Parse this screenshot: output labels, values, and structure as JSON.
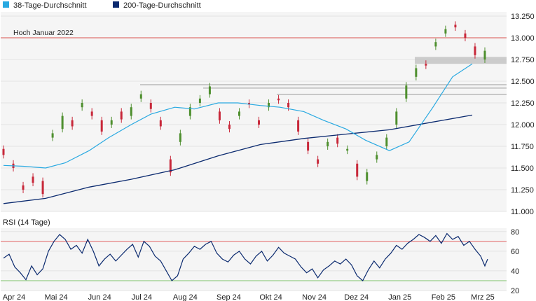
{
  "legend": [
    {
      "label": "38-Tage-Durchschnitt",
      "color": "#29a9e1"
    },
    {
      "label": "200-Tage-Durchschnitt",
      "color": "#0b2a6f"
    }
  ],
  "colors": {
    "up": "#4e8f2e",
    "down": "#c8283a",
    "ma38": "#29a9e1",
    "ma200": "#0b2a6f",
    "rsi": "#0b2a6f",
    "high_line": "#d9534f",
    "rsi_upper": "#e06060",
    "rsi_lower": "#7fc46a",
    "support_band": "#bdbdbd",
    "grid": "#e3e3e3",
    "panel": "#f5f5f5"
  },
  "chart_data": [
    {
      "type": "candlestick",
      "y_ticks": [
        "13.250",
        "13.000",
        "12.750",
        "12.500",
        "12.250",
        "12.000",
        "11.750",
        "11.500",
        "11.250",
        "11.000"
      ],
      "ylim": [
        11000,
        13250
      ],
      "x_ticks": [
        "Apr 24",
        "Mai 24",
        "Jun 24",
        "Jul 24",
        "Aug 24",
        "Sep 24",
        "Okt 24",
        "Nov 24",
        "Dez 24",
        "Jan 25",
        "Feb 25",
        "Mrz 25"
      ],
      "x_start": "2024-04-01",
      "x_end": "2025-03-14",
      "annotation": {
        "text": "Hoch Januar 2022",
        "value": 13000
      },
      "support_band": [
        12700,
        12780
      ],
      "resistance_levels": [
        12420,
        12460,
        12350
      ],
      "series": [
        {
          "name": "38-Tage-Durchschnitt",
          "points": [
            [
              "2024-04-01",
              11530
            ],
            [
              "2024-04-15",
              11520
            ],
            [
              "2024-05-01",
              11500
            ],
            [
              "2024-05-15",
              11560
            ],
            [
              "2024-06-01",
              11700
            ],
            [
              "2024-06-15",
              11850
            ],
            [
              "2024-07-01",
              12000
            ],
            [
              "2024-07-15",
              12120
            ],
            [
              "2024-08-01",
              12200
            ],
            [
              "2024-08-15",
              12180
            ],
            [
              "2024-09-01",
              12250
            ],
            [
              "2024-09-15",
              12250
            ],
            [
              "2024-10-01",
              12220
            ],
            [
              "2024-10-15",
              12200
            ],
            [
              "2024-11-01",
              12150
            ],
            [
              "2024-11-15",
              12050
            ],
            [
              "2024-12-01",
              11950
            ],
            [
              "2024-12-15",
              11820
            ],
            [
              "2025-01-01",
              11700
            ],
            [
              "2025-01-15",
              11800
            ],
            [
              "2025-02-01",
              12200
            ],
            [
              "2025-02-15",
              12550
            ],
            [
              "2025-03-01",
              12700
            ]
          ]
        },
        {
          "name": "200-Tage-Durchschnitt",
          "points": [
            [
              "2024-04-01",
              11090
            ],
            [
              "2024-05-01",
              11150
            ],
            [
              "2024-06-01",
              11280
            ],
            [
              "2024-07-01",
              11370
            ],
            [
              "2024-08-01",
              11480
            ],
            [
              "2024-09-01",
              11640
            ],
            [
              "2024-10-01",
              11770
            ],
            [
              "2024-11-01",
              11840
            ],
            [
              "2024-12-01",
              11890
            ],
            [
              "2025-01-01",
              11940
            ],
            [
              "2025-02-01",
              12030
            ],
            [
              "2025-03-01",
              12110
            ]
          ]
        }
      ],
      "candles": [
        [
          "2024-04-01",
          11720,
          11650
        ],
        [
          "2024-04-08",
          11550,
          11500
        ],
        [
          "2024-04-15",
          11300,
          11250
        ],
        [
          "2024-04-22",
          11400,
          11330
        ],
        [
          "2024-04-29",
          11350,
          11200
        ],
        [
          "2024-05-06",
          11850,
          11900
        ],
        [
          "2024-05-13",
          11950,
          12100
        ],
        [
          "2024-05-20",
          12050,
          11980
        ],
        [
          "2024-05-27",
          12200,
          12250
        ],
        [
          "2024-06-03",
          12150,
          12100
        ],
        [
          "2024-06-10",
          12050,
          11920
        ],
        [
          "2024-06-17",
          12000,
          12050
        ],
        [
          "2024-06-24",
          12150,
          12060
        ],
        [
          "2024-07-01",
          12100,
          12200
        ],
        [
          "2024-07-08",
          12300,
          12350
        ],
        [
          "2024-07-15",
          12250,
          12180
        ],
        [
          "2024-07-22",
          12050,
          11980
        ],
        [
          "2024-07-29",
          11600,
          11450
        ],
        [
          "2024-08-05",
          11800,
          11900
        ],
        [
          "2024-08-12",
          12100,
          12200
        ],
        [
          "2024-08-19",
          12250,
          12300
        ],
        [
          "2024-08-26",
          12350,
          12440
        ],
        [
          "2024-09-02",
          12150,
          12050
        ],
        [
          "2024-09-09",
          12000,
          11950
        ],
        [
          "2024-09-16",
          12100,
          12150
        ],
        [
          "2024-09-23",
          12250,
          12230
        ],
        [
          "2024-09-30",
          12050,
          12000
        ],
        [
          "2024-10-07",
          12200,
          12250
        ],
        [
          "2024-10-14",
          12300,
          12280
        ],
        [
          "2024-10-21",
          12250,
          12200
        ],
        [
          "2024-10-28",
          12050,
          11920
        ],
        [
          "2024-11-04",
          11800,
          11700
        ],
        [
          "2024-11-11",
          11600,
          11550
        ],
        [
          "2024-11-18",
          11750,
          11800
        ],
        [
          "2024-11-25",
          11850,
          11780
        ],
        [
          "2024-12-02",
          11700,
          11720
        ],
        [
          "2024-12-09",
          11550,
          11400
        ],
        [
          "2024-12-16",
          11350,
          11450
        ],
        [
          "2024-12-23",
          11600,
          11650
        ],
        [
          "2024-12-30",
          11750,
          11850
        ],
        [
          "2025-01-06",
          12000,
          12150
        ],
        [
          "2025-01-13",
          12300,
          12450
        ],
        [
          "2025-01-20",
          12550,
          12650
        ],
        [
          "2025-01-27",
          12700,
          12680
        ],
        [
          "2025-02-03",
          12900,
          12950
        ],
        [
          "2025-02-10",
          13050,
          13100
        ],
        [
          "2025-02-17",
          13150,
          13120
        ],
        [
          "2025-02-24",
          13050,
          13000
        ],
        [
          "2025-03-03",
          12900,
          12800
        ],
        [
          "2025-03-10",
          12750,
          12850
        ]
      ]
    },
    {
      "type": "line",
      "title": "RSI (14 Tage)",
      "y_ticks": [
        "80",
        "60",
        "40",
        "20"
      ],
      "ylim": [
        20,
        82
      ],
      "upper": 70,
      "lower": 30,
      "series": [
        {
          "name": "RSI (14 Tage)",
          "points": [
            [
              "2024-04-01",
              53
            ],
            [
              "2024-04-05",
              57
            ],
            [
              "2024-04-09",
              44
            ],
            [
              "2024-04-13",
              38
            ],
            [
              "2024-04-17",
              31
            ],
            [
              "2024-04-21",
              45
            ],
            [
              "2024-04-25",
              36
            ],
            [
              "2024-04-29",
              42
            ],
            [
              "2024-05-03",
              60
            ],
            [
              "2024-05-07",
              70
            ],
            [
              "2024-05-11",
              77
            ],
            [
              "2024-05-15",
              72
            ],
            [
              "2024-05-19",
              62
            ],
            [
              "2024-05-23",
              66
            ],
            [
              "2024-05-27",
              58
            ],
            [
              "2024-05-31",
              72
            ],
            [
              "2024-06-04",
              60
            ],
            [
              "2024-06-08",
              45
            ],
            [
              "2024-06-12",
              52
            ],
            [
              "2024-06-16",
              57
            ],
            [
              "2024-06-20",
              50
            ],
            [
              "2024-06-24",
              56
            ],
            [
              "2024-06-28",
              62
            ],
            [
              "2024-07-02",
              67
            ],
            [
              "2024-07-06",
              54
            ],
            [
              "2024-07-10",
              70
            ],
            [
              "2024-07-14",
              65
            ],
            [
              "2024-07-18",
              55
            ],
            [
              "2024-07-22",
              50
            ],
            [
              "2024-07-26",
              40
            ],
            [
              "2024-07-30",
              30
            ],
            [
              "2024-08-03",
              35
            ],
            [
              "2024-08-07",
              52
            ],
            [
              "2024-08-11",
              58
            ],
            [
              "2024-08-15",
              65
            ],
            [
              "2024-08-19",
              62
            ],
            [
              "2024-08-23",
              67
            ],
            [
              "2024-08-27",
              70
            ],
            [
              "2024-08-31",
              58
            ],
            [
              "2024-09-04",
              52
            ],
            [
              "2024-09-08",
              49
            ],
            [
              "2024-09-12",
              56
            ],
            [
              "2024-09-16",
              60
            ],
            [
              "2024-09-20",
              52
            ],
            [
              "2024-09-24",
              47
            ],
            [
              "2024-09-28",
              55
            ],
            [
              "2024-10-02",
              60
            ],
            [
              "2024-10-06",
              50
            ],
            [
              "2024-10-10",
              56
            ],
            [
              "2024-10-14",
              64
            ],
            [
              "2024-10-18",
              58
            ],
            [
              "2024-10-22",
              55
            ],
            [
              "2024-10-26",
              52
            ],
            [
              "2024-10-30",
              44
            ],
            [
              "2024-11-03",
              38
            ],
            [
              "2024-11-07",
              42
            ],
            [
              "2024-11-11",
              33
            ],
            [
              "2024-11-15",
              41
            ],
            [
              "2024-11-19",
              45
            ],
            [
              "2024-11-23",
              50
            ],
            [
              "2024-11-27",
              47
            ],
            [
              "2024-12-01",
              52
            ],
            [
              "2024-12-05",
              46
            ],
            [
              "2024-12-09",
              35
            ],
            [
              "2024-12-13",
              30
            ],
            [
              "2024-12-17",
              41
            ],
            [
              "2024-12-21",
              50
            ],
            [
              "2024-12-25",
              43
            ],
            [
              "2024-12-29",
              52
            ],
            [
              "2025-01-02",
              58
            ],
            [
              "2025-01-06",
              66
            ],
            [
              "2025-01-10",
              62
            ],
            [
              "2025-01-14",
              68
            ],
            [
              "2025-01-18",
              72
            ],
            [
              "2025-01-22",
              77
            ],
            [
              "2025-01-26",
              74
            ],
            [
              "2025-01-30",
              70
            ],
            [
              "2025-02-03",
              76
            ],
            [
              "2025-02-07",
              68
            ],
            [
              "2025-02-11",
              78
            ],
            [
              "2025-02-15",
              72
            ],
            [
              "2025-02-19",
              75
            ],
            [
              "2025-02-23",
              66
            ],
            [
              "2025-02-27",
              70
            ],
            [
              "2025-03-03",
              62
            ],
            [
              "2025-03-07",
              55
            ],
            [
              "2025-03-10",
              45
            ],
            [
              "2025-03-12",
              52
            ]
          ]
        }
      ]
    }
  ]
}
